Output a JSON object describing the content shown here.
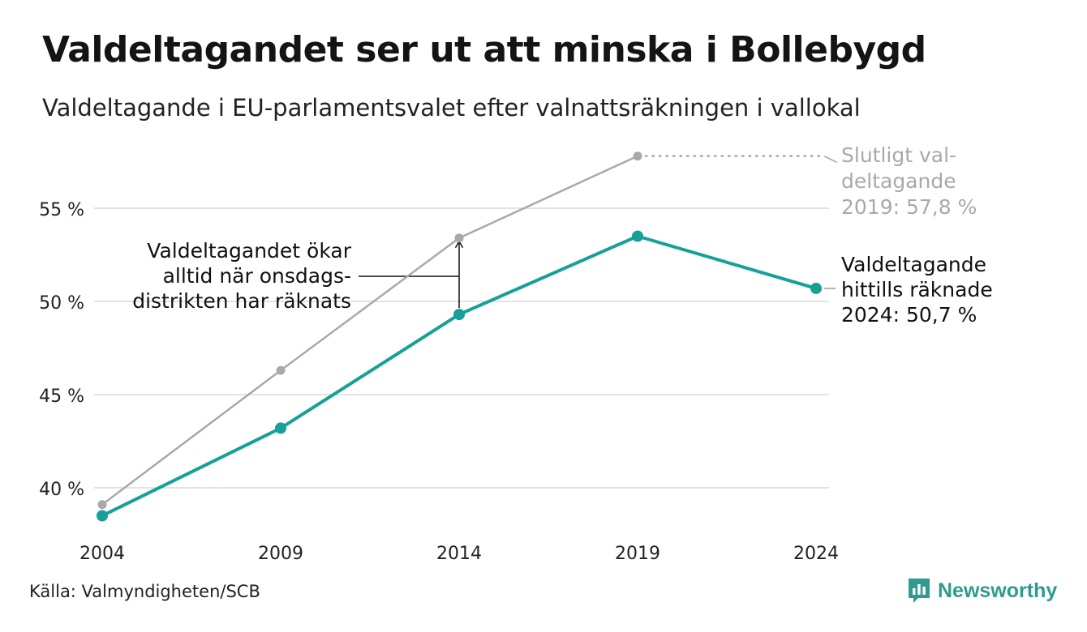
{
  "title": "Valdeltagandet ser ut att minska i Bollebygd",
  "subtitle": "Valdeltagande i EU-parlamentsvalet efter valnattsräkningen i vallokal",
  "source": "Källa: Valmyndigheten/SCB",
  "brand": {
    "name": "Newsworthy",
    "icon": "newsworthy-logo-icon",
    "color": "#2f9a8f"
  },
  "chart_data": {
    "type": "line",
    "x": [
      2004,
      2009,
      2014,
      2019,
      2024
    ],
    "x_ticks": [
      "2004",
      "2009",
      "2014",
      "2019",
      "2024"
    ],
    "y_ticks": [
      {
        "value": 40,
        "label": "40 %"
      },
      {
        "value": 45,
        "label": "45 %"
      },
      {
        "value": 50,
        "label": "50 %"
      },
      {
        "value": 55,
        "label": "55 %"
      }
    ],
    "ylim": [
      37.5,
      58
    ],
    "grid": "horizontal",
    "series": [
      {
        "id": "final",
        "color": "#a9a9a9",
        "values": [
          39.1,
          46.3,
          53.4,
          57.8,
          null
        ]
      },
      {
        "id": "election-night",
        "color": "#16a097",
        "values": [
          38.5,
          43.2,
          49.3,
          53.5,
          50.7
        ]
      }
    ],
    "annotations": {
      "final_label": [
        "Slutligt val-",
        "deltagande",
        "2019: 57,8 %"
      ],
      "current_label": [
        "Valdeltagande",
        "hittills räknade",
        "2024: 50,7 %"
      ],
      "note_label": [
        "Valdeltagandet ökar",
        "alltid när onsdags-",
        "distrikten har räknats"
      ]
    }
  }
}
